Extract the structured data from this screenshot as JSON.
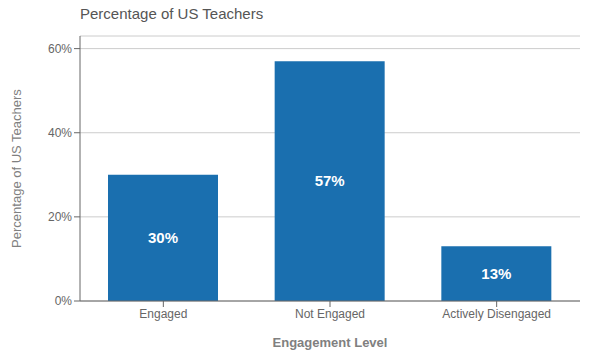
{
  "chart_data": {
    "type": "bar",
    "title": "Percentage of US Teachers",
    "categories": [
      "Engaged",
      "Not Engaged",
      "Actively Disengaged"
    ],
    "values": [
      30,
      57,
      13
    ],
    "value_labels": [
      "30%",
      "57%",
      "13%"
    ],
    "data_labels": true,
    "color": "#1a6faf",
    "xlabel": "Engagement Level",
    "ylabel": "Percentage of US Teachers",
    "ylim": [
      0,
      63
    ],
    "yticks": [
      {
        "value": 0,
        "label": "0%"
      },
      {
        "value": 20,
        "label": "20%"
      },
      {
        "value": 40,
        "label": "40%"
      },
      {
        "value": 60,
        "label": "60%"
      }
    ],
    "grid": true
  }
}
